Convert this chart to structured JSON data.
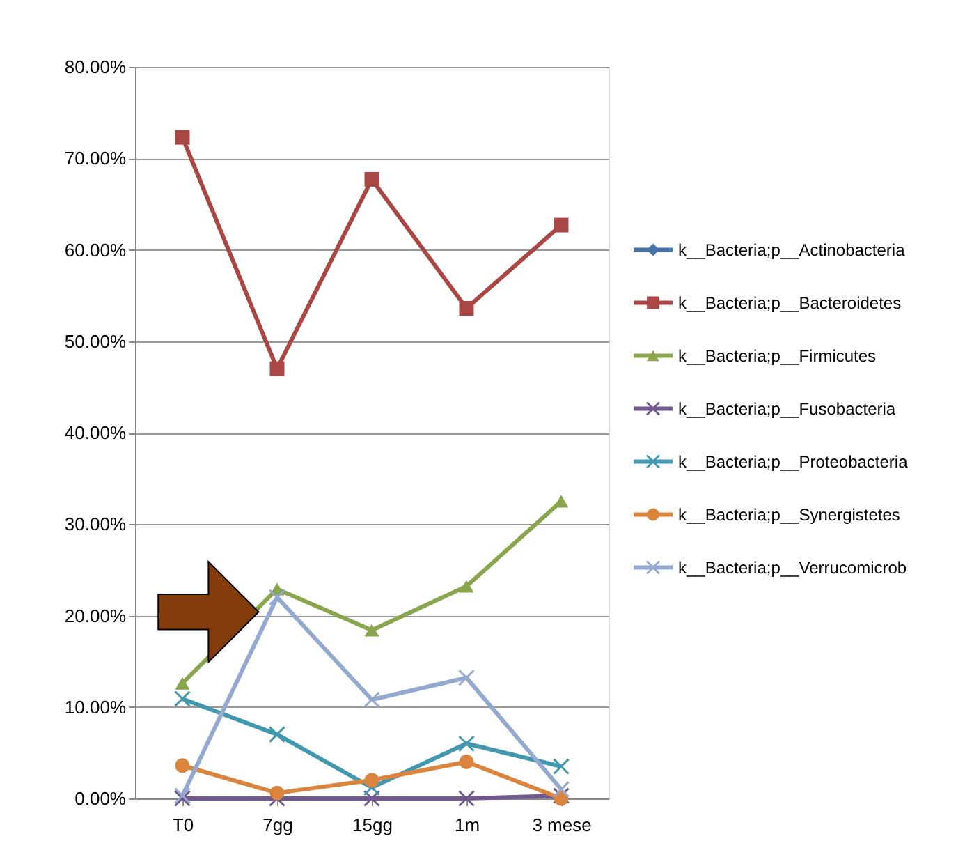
{
  "chart_data": {
    "type": "line",
    "categories": [
      "T0",
      "7gg",
      "15gg",
      "1m",
      "3 mese"
    ],
    "series": [
      {
        "name": "k__Bacteria;p__Actinobacteria",
        "color": "#4572a7",
        "marker": "diamond",
        "values": [
          null,
          null,
          null,
          null,
          null
        ]
      },
      {
        "name": "k__Bacteria;p__Bacteroidetes",
        "color": "#aa4643",
        "marker": "square",
        "values": [
          72.3,
          47,
          67.7,
          53.6,
          62.7
        ]
      },
      {
        "name": "k__Bacteria;p__Firmicutes",
        "color": "#89a54e",
        "marker": "triangle",
        "values": [
          12.6,
          22.9,
          18.4,
          23.2,
          32.5
        ]
      },
      {
        "name": "k__Bacteria;p__Fusobacteria",
        "color": "#71588f",
        "marker": "cross",
        "values": [
          0,
          0,
          0,
          0,
          0.3
        ]
      },
      {
        "name": "k__Bacteria;p__Proteobacteria",
        "color": "#4198af",
        "marker": "cross",
        "values": [
          10.9,
          7.0,
          1.2,
          6.0,
          3.5
        ]
      },
      {
        "name": "k__Bacteria;p__Synergistetes",
        "color": "#db843d",
        "marker": "circle",
        "values": [
          3.6,
          0.6,
          2.0,
          4.0,
          0.0
        ]
      },
      {
        "name": "k__Bacteria;p__Verrucomicrob",
        "color": "#93a9cf",
        "marker": "cross",
        "values": [
          0.3,
          22,
          10.8,
          13.2,
          1.0
        ]
      }
    ],
    "ylim": [
      0,
      80
    ],
    "yticks": [
      {
        "value": 0,
        "label": "0.00%"
      },
      {
        "value": 10,
        "label": "10.00%"
      },
      {
        "value": 20,
        "label": "20.00%"
      },
      {
        "value": 30,
        "label": "30.00%"
      },
      {
        "value": 40,
        "label": "40.00%"
      },
      {
        "value": 50,
        "label": "50.00%"
      },
      {
        "value": 60,
        "label": "60.00%"
      },
      {
        "value": 70,
        "label": "70.00%"
      },
      {
        "value": 80,
        "label": "80.00%"
      }
    ],
    "grid": "y",
    "legend": "right",
    "line_style": "solid"
  }
}
